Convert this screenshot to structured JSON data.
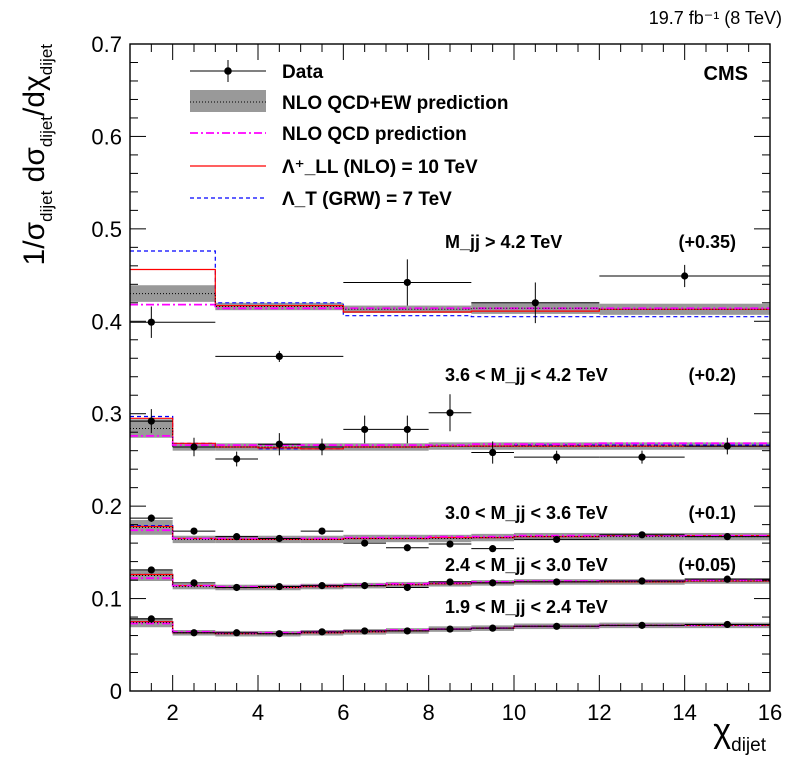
{
  "header": {
    "lumi": "19.7 fb⁻¹ (8 TeV)"
  },
  "chart_data": {
    "type": "line",
    "title": "",
    "experiment_label": "CMS",
    "xlabel": "χ_dijet",
    "ylabel": "1/σ_dijet dσ_dijet/dχ_dijet",
    "xlim": [
      1,
      16
    ],
    "ylim": [
      0,
      0.7
    ],
    "x_ticks": [
      "2",
      "4",
      "6",
      "8",
      "10",
      "12",
      "14",
      "16"
    ],
    "y_ticks": [
      "0",
      "0.1",
      "0.2",
      "0.3",
      "0.4",
      "0.5",
      "0.6",
      "0.7"
    ],
    "grid": false,
    "legend_position": "top-left",
    "legend": [
      {
        "key": "data",
        "label": "Data"
      },
      {
        "key": "nlo_ew",
        "label": "NLO QCD+EW prediction"
      },
      {
        "key": "nlo_qcd",
        "label": "NLO QCD prediction"
      },
      {
        "key": "ll",
        "label": "Λ⁺_LL (NLO) = 10 TeV"
      },
      {
        "key": "grw",
        "label": "Λ_T (GRW) = 7 TeV"
      }
    ],
    "mass_bins": [
      {
        "label": "M_jj > 4.2 TeV",
        "offset": "(+0.35)",
        "edges": [
          1,
          3,
          6,
          9,
          12,
          16
        ],
        "data_x": [
          1.5,
          4.5,
          7.5,
          10.5,
          14
        ],
        "data_y": [
          0.399,
          0.362,
          0.442,
          0.42,
          0.449
        ],
        "data_err": [
          0.017,
          0.006,
          0.025,
          0.022,
          0.012
        ],
        "nlo_ew": [
          0.43,
          0.416,
          0.413,
          0.414,
          0.413
        ],
        "nlo_ew_err": [
          0.009,
          0.004,
          0.004,
          0.006,
          0.006
        ],
        "nlo_qcd": [
          0.418,
          0.414,
          0.414,
          0.414,
          0.414
        ],
        "ll": [
          0.456,
          0.417,
          0.41,
          0.411,
          0.413
        ],
        "grw": [
          0.476,
          0.42,
          0.406,
          0.405,
          0.405
        ]
      },
      {
        "label": "3.6 < M_jj < 4.2 TeV",
        "offset": "(+0.2)",
        "edges": [
          1,
          2,
          3,
          4,
          5,
          6,
          7,
          8,
          9,
          10,
          12,
          14,
          16
        ],
        "data_x": [
          1.5,
          2.5,
          3.5,
          4.5,
          5.5,
          6.5,
          7.5,
          8.5,
          9.5,
          11,
          13,
          15
        ],
        "data_y": [
          0.292,
          0.264,
          0.251,
          0.267,
          0.264,
          0.283,
          0.283,
          0.301,
          0.258,
          0.253,
          0.253,
          0.265
        ],
        "data_err": [
          0.013,
          0.01,
          0.008,
          0.012,
          0.009,
          0.015,
          0.015,
          0.02,
          0.012,
          0.007,
          0.007,
          0.009
        ],
        "nlo_ew": [
          0.284,
          0.264,
          0.264,
          0.264,
          0.264,
          0.264,
          0.264,
          0.265,
          0.265,
          0.265,
          0.265,
          0.265
        ],
        "nlo_ew_err": [
          0.01,
          0.004,
          0.004,
          0.004,
          0.004,
          0.004,
          0.004,
          0.004,
          0.004,
          0.004,
          0.004,
          0.004
        ],
        "nlo_qcd": [
          0.276,
          0.266,
          0.266,
          0.266,
          0.266,
          0.266,
          0.266,
          0.266,
          0.267,
          0.267,
          0.268,
          0.268
        ],
        "ll": [
          0.295,
          0.268,
          0.264,
          0.263,
          0.262,
          0.264,
          0.264,
          0.265,
          0.265,
          0.265,
          0.265,
          0.265
        ],
        "grw": [
          0.297,
          0.268,
          0.264,
          0.262,
          0.262,
          0.264,
          0.264,
          0.265,
          0.265,
          0.266,
          0.266,
          0.266
        ]
      },
      {
        "label": "3.0 < M_jj < 3.6 TeV",
        "offset": "(+0.1)",
        "edges": [
          1,
          2,
          3,
          4,
          5,
          6,
          7,
          8,
          9,
          10,
          12,
          14,
          16
        ],
        "data_x": [
          1.5,
          2.5,
          3.5,
          4.5,
          5.5,
          6.5,
          7.5,
          8.5,
          9.5,
          11,
          13,
          15
        ],
        "data_y": [
          0.187,
          0.173,
          0.167,
          0.165,
          0.173,
          0.16,
          0.155,
          0.159,
          0.154,
          0.164,
          0.169,
          0.167
        ],
        "data_err": [
          0.004,
          0.003,
          0.003,
          0.003,
          0.003,
          0.003,
          0.003,
          0.003,
          0.003,
          0.002,
          0.002,
          0.002
        ],
        "nlo_ew": [
          0.177,
          0.164,
          0.164,
          0.164,
          0.164,
          0.165,
          0.165,
          0.165,
          0.166,
          0.167,
          0.167,
          0.167
        ],
        "nlo_ew_err": [
          0.008,
          0.004,
          0.004,
          0.004,
          0.004,
          0.004,
          0.004,
          0.004,
          0.004,
          0.004,
          0.004,
          0.004
        ],
        "nlo_qcd": [
          0.174,
          0.165,
          0.165,
          0.165,
          0.165,
          0.166,
          0.166,
          0.167,
          0.167,
          0.168,
          0.168,
          0.168
        ],
        "ll": [
          0.178,
          0.165,
          0.164,
          0.164,
          0.164,
          0.165,
          0.165,
          0.166,
          0.166,
          0.167,
          0.168,
          0.168
        ],
        "grw": [
          0.179,
          0.165,
          0.164,
          0.164,
          0.164,
          0.165,
          0.165,
          0.166,
          0.166,
          0.167,
          0.168,
          0.168
        ]
      },
      {
        "label": "2.4 < M_jj < 3.0 TeV",
        "offset": "(+0.05)",
        "edges": [
          1,
          2,
          3,
          4,
          5,
          6,
          7,
          8,
          9,
          10,
          12,
          14,
          16
        ],
        "data_x": [
          1.5,
          2.5,
          3.5,
          4.5,
          5.5,
          6.5,
          7.5,
          8.5,
          9.5,
          11,
          13,
          15
        ],
        "data_y": [
          0.131,
          0.117,
          0.112,
          0.113,
          0.114,
          0.114,
          0.112,
          0.118,
          0.117,
          0.118,
          0.119,
          0.121
        ],
        "data_err": [
          0.003,
          0.002,
          0.002,
          0.002,
          0.002,
          0.002,
          0.002,
          0.002,
          0.002,
          0.002,
          0.002,
          0.002
        ],
        "nlo_ew": [
          0.125,
          0.113,
          0.112,
          0.112,
          0.113,
          0.114,
          0.115,
          0.116,
          0.117,
          0.118,
          0.118,
          0.119
        ],
        "nlo_ew_err": [
          0.006,
          0.003,
          0.003,
          0.003,
          0.003,
          0.003,
          0.003,
          0.003,
          0.003,
          0.003,
          0.003,
          0.003
        ],
        "nlo_qcd": [
          0.122,
          0.114,
          0.113,
          0.113,
          0.114,
          0.115,
          0.116,
          0.117,
          0.118,
          0.119,
          0.119,
          0.12
        ],
        "ll": [
          0.126,
          0.114,
          0.112,
          0.112,
          0.113,
          0.114,
          0.115,
          0.116,
          0.117,
          0.118,
          0.118,
          0.119
        ],
        "grw": [
          0.126,
          0.114,
          0.112,
          0.112,
          0.113,
          0.114,
          0.115,
          0.116,
          0.117,
          0.118,
          0.119,
          0.119
        ]
      },
      {
        "label": "1.9 < M_jj < 2.4 TeV",
        "offset": "",
        "edges": [
          1,
          2,
          3,
          4,
          5,
          6,
          7,
          8,
          9,
          10,
          12,
          14,
          16
        ],
        "data_x": [
          1.5,
          2.5,
          3.5,
          4.5,
          5.5,
          6.5,
          7.5,
          8.5,
          9.5,
          11,
          13,
          15
        ],
        "data_y": [
          0.078,
          0.063,
          0.063,
          0.062,
          0.064,
          0.065,
          0.065,
          0.067,
          0.068,
          0.07,
          0.071,
          0.072
        ],
        "data_err": [
          0.002,
          0.001,
          0.001,
          0.001,
          0.001,
          0.001,
          0.001,
          0.001,
          0.001,
          0.001,
          0.001,
          0.001
        ],
        "nlo_ew": [
          0.074,
          0.063,
          0.062,
          0.062,
          0.063,
          0.064,
          0.065,
          0.067,
          0.068,
          0.07,
          0.071,
          0.071
        ],
        "nlo_ew_err": [
          0.005,
          0.003,
          0.003,
          0.003,
          0.003,
          0.003,
          0.003,
          0.003,
          0.003,
          0.003,
          0.003,
          0.003
        ],
        "nlo_qcd": [
          0.073,
          0.064,
          0.063,
          0.063,
          0.064,
          0.065,
          0.066,
          0.067,
          0.068,
          0.07,
          0.071,
          0.071
        ],
        "ll": [
          0.075,
          0.063,
          0.062,
          0.062,
          0.063,
          0.064,
          0.065,
          0.067,
          0.068,
          0.07,
          0.071,
          0.071
        ],
        "grw": [
          0.075,
          0.063,
          0.062,
          0.062,
          0.063,
          0.064,
          0.065,
          0.067,
          0.068,
          0.07,
          0.071,
          0.071
        ]
      }
    ],
    "colors": {
      "data": "#000000",
      "nlo_ew_band": "#999999",
      "nlo_ew_line": "#000000",
      "nlo_qcd": "#ff00ff",
      "ll": "#ff0000",
      "grw": "#0000ff"
    }
  }
}
